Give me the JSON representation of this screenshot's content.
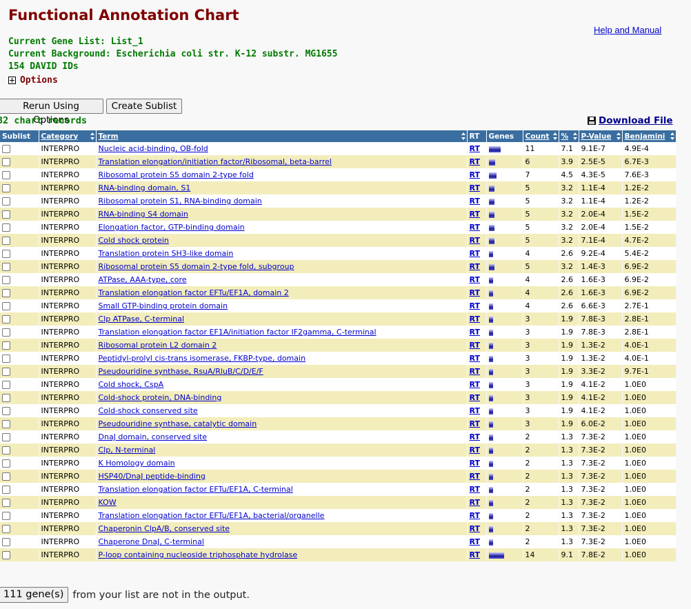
{
  "page": {
    "title": "Functional Annotation Chart",
    "help_link": "Help and Manual",
    "gene_list_label": "Current Gene List: List_1",
    "background_label": "Current Background: Escherichia coli str. K-12 substr. MG1655",
    "ids_label": "154 DAVID IDs",
    "options_label": "Options"
  },
  "toolbar": {
    "rerun_label": "Rerun Using Options",
    "sublist_label": "Create Sublist",
    "records_label": "32 chart records",
    "download_label": "Download File"
  },
  "table": {
    "headers": {
      "sublist": "Sublist",
      "category": "Category",
      "term": "Term",
      "rt": "RT",
      "genes": "Genes",
      "count": "Count",
      "percent": "%",
      "pvalue": "P-Value",
      "benjamini": "Benjamini"
    },
    "rt_label": "RT",
    "rows": [
      {
        "category": "INTERPRO",
        "term": "Nucleic acid-binding, OB-fold",
        "count": "11",
        "percent": "7.1",
        "pvalue": "9.1E-7",
        "benjamini": "4.9E-4"
      },
      {
        "category": "INTERPRO",
        "term": "Translation elongation/initiation factor/Ribosomal, beta-barrel",
        "count": "6",
        "percent": "3.9",
        "pvalue": "2.5E-5",
        "benjamini": "6.7E-3"
      },
      {
        "category": "INTERPRO",
        "term": "Ribosomal protein S5 domain 2-type fold",
        "count": "7",
        "percent": "4.5",
        "pvalue": "4.3E-5",
        "benjamini": "7.6E-3"
      },
      {
        "category": "INTERPRO",
        "term": "RNA-binding domain, S1",
        "count": "5",
        "percent": "3.2",
        "pvalue": "1.1E-4",
        "benjamini": "1.2E-2"
      },
      {
        "category": "INTERPRO",
        "term": "Ribosomal protein S1, RNA-binding domain",
        "count": "5",
        "percent": "3.2",
        "pvalue": "1.1E-4",
        "benjamini": "1.2E-2"
      },
      {
        "category": "INTERPRO",
        "term": "RNA-binding S4 domain",
        "count": "5",
        "percent": "3.2",
        "pvalue": "2.0E-4",
        "benjamini": "1.5E-2"
      },
      {
        "category": "INTERPRO",
        "term": "Elongation factor, GTP-binding domain",
        "count": "5",
        "percent": "3.2",
        "pvalue": "2.0E-4",
        "benjamini": "1.5E-2"
      },
      {
        "category": "INTERPRO",
        "term": "Cold shock protein",
        "count": "5",
        "percent": "3.2",
        "pvalue": "7.1E-4",
        "benjamini": "4.7E-2"
      },
      {
        "category": "INTERPRO",
        "term": "Translation protein SH3-like domain",
        "count": "4",
        "percent": "2.6",
        "pvalue": "9.2E-4",
        "benjamini": "5.4E-2"
      },
      {
        "category": "INTERPRO",
        "term": "Ribosomal protein S5 domain 2-type fold, subgroup",
        "count": "5",
        "percent": "3.2",
        "pvalue": "1.4E-3",
        "benjamini": "6.9E-2"
      },
      {
        "category": "INTERPRO",
        "term": "ATPase, AAA-type, core",
        "count": "4",
        "percent": "2.6",
        "pvalue": "1.6E-3",
        "benjamini": "6.9E-2"
      },
      {
        "category": "INTERPRO",
        "term": "Translation elongation factor EFTu/EF1A, domain 2",
        "count": "4",
        "percent": "2.6",
        "pvalue": "1.6E-3",
        "benjamini": "6.9E-2"
      },
      {
        "category": "INTERPRO",
        "term": "Small GTP-binding protein domain",
        "count": "4",
        "percent": "2.6",
        "pvalue": "6.6E-3",
        "benjamini": "2.7E-1"
      },
      {
        "category": "INTERPRO",
        "term": "Clp ATPase, C-terminal",
        "count": "3",
        "percent": "1.9",
        "pvalue": "7.8E-3",
        "benjamini": "2.8E-1"
      },
      {
        "category": "INTERPRO",
        "term": "Translation elongation factor EF1A/initiation factor IF2gamma, C-terminal",
        "count": "3",
        "percent": "1.9",
        "pvalue": "7.8E-3",
        "benjamini": "2.8E-1"
      },
      {
        "category": "INTERPRO",
        "term": "Ribosomal protein L2 domain 2",
        "count": "3",
        "percent": "1.9",
        "pvalue": "1.3E-2",
        "benjamini": "4.0E-1"
      },
      {
        "category": "INTERPRO",
        "term": "Peptidyl-prolyl cis-trans isomerase, FKBP-type, domain",
        "count": "3",
        "percent": "1.9",
        "pvalue": "1.3E-2",
        "benjamini": "4.0E-1"
      },
      {
        "category": "INTERPRO",
        "term": "Pseudouridine synthase, RsuA/RluB/C/D/E/F",
        "count": "3",
        "percent": "1.9",
        "pvalue": "3.3E-2",
        "benjamini": "9.7E-1"
      },
      {
        "category": "INTERPRO",
        "term": "Cold shock, CspA",
        "count": "3",
        "percent": "1.9",
        "pvalue": "4.1E-2",
        "benjamini": "1.0E0"
      },
      {
        "category": "INTERPRO",
        "term": "Cold-shock protein, DNA-binding",
        "count": "3",
        "percent": "1.9",
        "pvalue": "4.1E-2",
        "benjamini": "1.0E0"
      },
      {
        "category": "INTERPRO",
        "term": "Cold-shock conserved site",
        "count": "3",
        "percent": "1.9",
        "pvalue": "4.1E-2",
        "benjamini": "1.0E0"
      },
      {
        "category": "INTERPRO",
        "term": "Pseudouridine synthase, catalytic domain",
        "count": "3",
        "percent": "1.9",
        "pvalue": "6.0E-2",
        "benjamini": "1.0E0"
      },
      {
        "category": "INTERPRO",
        "term": "DnaJ domain, conserved site",
        "count": "2",
        "percent": "1.3",
        "pvalue": "7.3E-2",
        "benjamini": "1.0E0"
      },
      {
        "category": "INTERPRO",
        "term": "Clp, N-terminal",
        "count": "2",
        "percent": "1.3",
        "pvalue": "7.3E-2",
        "benjamini": "1.0E0"
      },
      {
        "category": "INTERPRO",
        "term": "K Homology domain",
        "count": "2",
        "percent": "1.3",
        "pvalue": "7.3E-2",
        "benjamini": "1.0E0"
      },
      {
        "category": "INTERPRO",
        "term": "HSP40/DnaJ peptide-binding",
        "count": "2",
        "percent": "1.3",
        "pvalue": "7.3E-2",
        "benjamini": "1.0E0"
      },
      {
        "category": "INTERPRO",
        "term": "Translation elongation factor EFTu/EF1A, C-terminal",
        "count": "2",
        "percent": "1.3",
        "pvalue": "7.3E-2",
        "benjamini": "1.0E0"
      },
      {
        "category": "INTERPRO",
        "term": "KOW",
        "count": "2",
        "percent": "1.3",
        "pvalue": "7.3E-2",
        "benjamini": "1.0E0"
      },
      {
        "category": "INTERPRO",
        "term": "Translation elongation factor EFTu/EF1A, bacterial/organelle",
        "count": "2",
        "percent": "1.3",
        "pvalue": "7.3E-2",
        "benjamini": "1.0E0"
      },
      {
        "category": "INTERPRO",
        "term": "Chaperonin ClpA/B, conserved site",
        "count": "2",
        "percent": "1.3",
        "pvalue": "7.3E-2",
        "benjamini": "1.0E0"
      },
      {
        "category": "INTERPRO",
        "term": "Chaperone DnaJ, C-terminal",
        "count": "2",
        "percent": "1.3",
        "pvalue": "7.3E-2",
        "benjamini": "1.0E0"
      },
      {
        "category": "INTERPRO",
        "term": "P-loop containing nucleoside triphosphate hydrolase",
        "count": "14",
        "percent": "9.1",
        "pvalue": "7.8E-2",
        "benjamini": "1.0E0"
      }
    ]
  },
  "footer": {
    "genes_button": "111 gene(s)",
    "genes_text": "from your list are not in the output."
  },
  "colors": {
    "title": "#800000",
    "info": "#007a00",
    "header_bg": "#3a6ea0",
    "row_even": "#f2edbb",
    "link": "#0000cc"
  }
}
